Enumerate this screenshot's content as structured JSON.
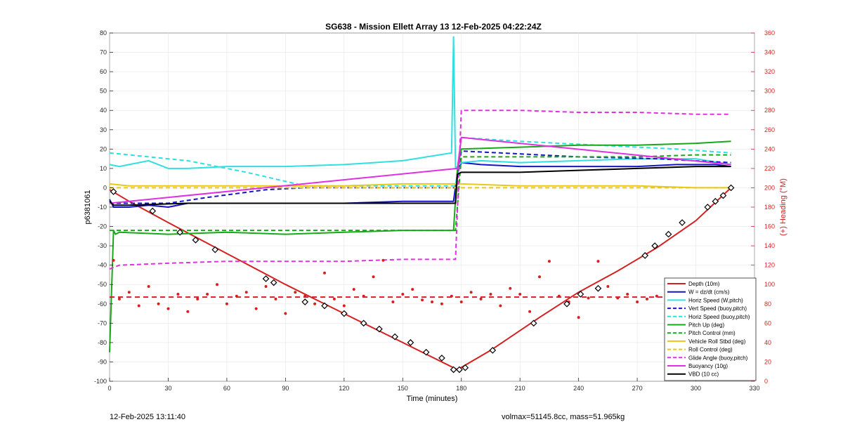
{
  "footer": {
    "timestamp": "12-Feb-2025 13:11:40",
    "stats": "volmax=51145.8cc, mass=51.965kg"
  },
  "chart_data": {
    "type": "line",
    "title": "SG638 - Mission Ellett Array 13 12-Feb-2025 04:22:24Z",
    "xlabel": "Time (minutes)",
    "ylabel": "p6381061",
    "y2label": "(+) Heading (°M)",
    "xlim": [
      0,
      330
    ],
    "ylim": [
      -100,
      80
    ],
    "y2lim": [
      0,
      360
    ],
    "xticks": [
      0,
      30,
      60,
      90,
      120,
      150,
      180,
      210,
      240,
      270,
      300,
      330
    ],
    "yticks": [
      -100,
      -90,
      -80,
      -70,
      -60,
      -50,
      -40,
      -30,
      -20,
      -10,
      0,
      10,
      20,
      30,
      40,
      50,
      60,
      70,
      80
    ],
    "y2ticks": [
      0,
      20,
      40,
      60,
      80,
      100,
      120,
      140,
      160,
      180,
      200,
      220,
      240,
      260,
      280,
      300,
      320,
      340,
      360
    ],
    "legend_position": "bottom-right",
    "colors": {
      "red": "#d62020",
      "blue": "#1515c8",
      "cyan": "#30e0e0",
      "green": "#18a818",
      "yellow": "#e8c818",
      "magenta": "#e030e0",
      "black": "#000000",
      "heading": "#d62020"
    },
    "series": [
      {
        "name": "Depth (10m)",
        "color": "red",
        "dash": false,
        "x": [
          0,
          10,
          30,
          60,
          90,
          120,
          150,
          178,
          195,
          220,
          240,
          260,
          280,
          300,
          318
        ],
        "y": [
          -1,
          -7,
          -18,
          -34,
          -50,
          -65,
          -80,
          -94,
          -84,
          -67,
          -54,
          -43,
          -31,
          -17,
          0
        ]
      },
      {
        "name": "W = dz/dt (cm/s)",
        "color": "blue",
        "dash": false,
        "x": [
          0,
          2,
          10,
          20,
          30,
          40,
          60,
          90,
          120,
          150,
          176,
          178,
          180,
          190,
          210,
          230,
          250,
          270,
          290,
          310,
          318
        ],
        "y": [
          -6,
          -10,
          -10,
          -9,
          -10,
          -8,
          -8,
          -8,
          -8,
          -7,
          -7,
          8,
          13,
          12,
          11,
          11,
          11,
          11,
          12,
          12,
          11
        ]
      },
      {
        "name": "Horiz Speed (W,pitch)",
        "color": "cyan",
        "dash": false,
        "x": [
          0,
          5,
          20,
          30,
          40,
          60,
          90,
          120,
          150,
          175,
          176,
          177,
          180,
          190,
          210,
          240,
          270,
          300,
          318
        ],
        "y": [
          12,
          11,
          14,
          10,
          10,
          11,
          11,
          12,
          14,
          18,
          78,
          10,
          13,
          14,
          13,
          14,
          15,
          15,
          12
        ]
      },
      {
        "name": "Vert Speed (buoy,pitch)",
        "color": "blue",
        "dash": true,
        "x": [
          0,
          30,
          50,
          80,
          100,
          130,
          160,
          177,
          180,
          200,
          240,
          280,
          318
        ],
        "y": [
          -8,
          -8,
          -5,
          -1,
          0,
          0,
          0,
          0,
          19,
          18,
          16,
          15,
          13
        ]
      },
      {
        "name": "Horiz Speed (buoy,pitch)",
        "color": "cyan",
        "dash": true,
        "x": [
          0,
          20,
          40,
          70,
          100,
          130,
          160,
          177,
          180,
          210,
          250,
          290,
          318
        ],
        "y": [
          18,
          16,
          14,
          8,
          1,
          1,
          1,
          1,
          26,
          24,
          22,
          20,
          18
        ]
      },
      {
        "name": "Pitch Up (deg)",
        "color": "green",
        "dash": false,
        "x": [
          0,
          2,
          3,
          5,
          30,
          60,
          90,
          120,
          150,
          176,
          178,
          180,
          210,
          240,
          270,
          300,
          318
        ],
        "y": [
          -85,
          -22,
          -24,
          -23,
          -24,
          -23,
          -24,
          -23,
          -22,
          -22,
          10,
          20,
          21,
          22,
          22,
          23,
          24
        ]
      },
      {
        "name": "Pitch Control (mm)",
        "color": "green",
        "dash": true,
        "x": [
          0,
          30,
          60,
          90,
          120,
          150,
          177,
          180,
          210,
          240,
          270,
          300,
          318
        ],
        "y": [
          -22,
          -22,
          -22,
          -22,
          -22,
          -22,
          -22,
          16,
          16,
          16,
          16,
          17,
          17
        ]
      },
      {
        "name": "Vehicle Roll Stbd (deg)",
        "color": "yellow",
        "dash": false,
        "x": [
          0,
          10,
          30,
          60,
          90,
          120,
          150,
          177,
          180,
          210,
          240,
          270,
          300,
          318
        ],
        "y": [
          2,
          1,
          1,
          1,
          1,
          1,
          2,
          2,
          2,
          1,
          1,
          1,
          0,
          0
        ]
      },
      {
        "name": "Roll Control (deg)",
        "color": "yellow",
        "dash": true,
        "x": [
          0,
          30,
          60,
          90,
          120,
          150,
          177,
          180,
          210,
          240,
          270,
          300,
          318
        ],
        "y": [
          0,
          0,
          0,
          0,
          0,
          0,
          0,
          0,
          0,
          0,
          0,
          0,
          0
        ]
      },
      {
        "name": "Glide Angle (buoy,pitch)",
        "color": "magenta",
        "dash": true,
        "x": [
          0,
          5,
          30,
          60,
          90,
          120,
          150,
          177,
          180,
          210,
          240,
          270,
          300,
          318
        ],
        "y": [
          -42,
          -40,
          -39,
          -38,
          -38,
          -38,
          -37,
          -37,
          40,
          40,
          39,
          39,
          38,
          38
        ]
      },
      {
        "name": "Buoyancy (10g)",
        "color": "magenta",
        "dash": false,
        "x": [
          0,
          178,
          180,
          318
        ],
        "y": [
          -8,
          10,
          26,
          12
        ]
      },
      {
        "name": "VBD (10 cc)",
        "color": "black",
        "dash": false,
        "x": [
          0,
          2,
          10,
          40,
          90,
          140,
          177,
          178,
          180,
          210,
          240,
          270,
          300,
          318
        ],
        "y": [
          -7,
          -9,
          -9,
          -8,
          -8,
          -8,
          -8,
          7,
          8,
          8,
          9,
          10,
          11,
          11
        ]
      }
    ],
    "heading": {
      "name": "(+) Heading (°M)",
      "mean": 87,
      "x": [
        2,
        5,
        10,
        15,
        20,
        25,
        30,
        35,
        40,
        45,
        50,
        55,
        60,
        65,
        70,
        75,
        80,
        85,
        90,
        95,
        100,
        105,
        110,
        115,
        120,
        125,
        130,
        135,
        140,
        145,
        150,
        155,
        160,
        165,
        170,
        175,
        180,
        185,
        190,
        195,
        200,
        205,
        210,
        215,
        220,
        225,
        230,
        235,
        240,
        245,
        250,
        255,
        260,
        265,
        270,
        275,
        280,
        285,
        290,
        295,
        300,
        305,
        310,
        315
      ],
      "y": [
        125,
        85,
        92,
        78,
        98,
        80,
        75,
        90,
        72,
        85,
        90,
        100,
        80,
        88,
        92,
        75,
        98,
        85,
        70,
        92,
        88,
        80,
        112,
        85,
        78,
        95,
        88,
        108,
        125,
        82,
        90,
        95,
        84,
        82,
        80,
        88,
        82,
        92,
        85,
        90,
        78,
        96,
        90,
        72,
        108,
        124,
        88,
        82,
        66,
        86,
        124,
        98,
        86,
        90,
        82,
        85,
        88,
        80,
        96,
        82,
        92,
        86,
        84,
        86
      ]
    },
    "depth_markers": {
      "x": [
        2,
        22,
        36,
        44,
        54,
        80,
        84,
        100,
        110,
        120,
        130,
        138,
        146,
        154,
        162,
        170,
        176,
        179,
        182,
        196,
        217,
        234,
        241,
        250,
        274,
        279,
        286,
        293,
        306,
        310,
        314,
        318
      ],
      "y": [
        -2,
        -12,
        -23,
        -27,
        -32,
        -47,
        -49,
        -59,
        -61,
        -65,
        -70,
        -73,
        -77,
        -80,
        -85,
        -88,
        -94,
        -94,
        -93,
        -84,
        -70,
        -60,
        -55,
        -52,
        -35,
        -30,
        -24,
        -18,
        -10,
        -7,
        -4,
        0
      ]
    }
  }
}
